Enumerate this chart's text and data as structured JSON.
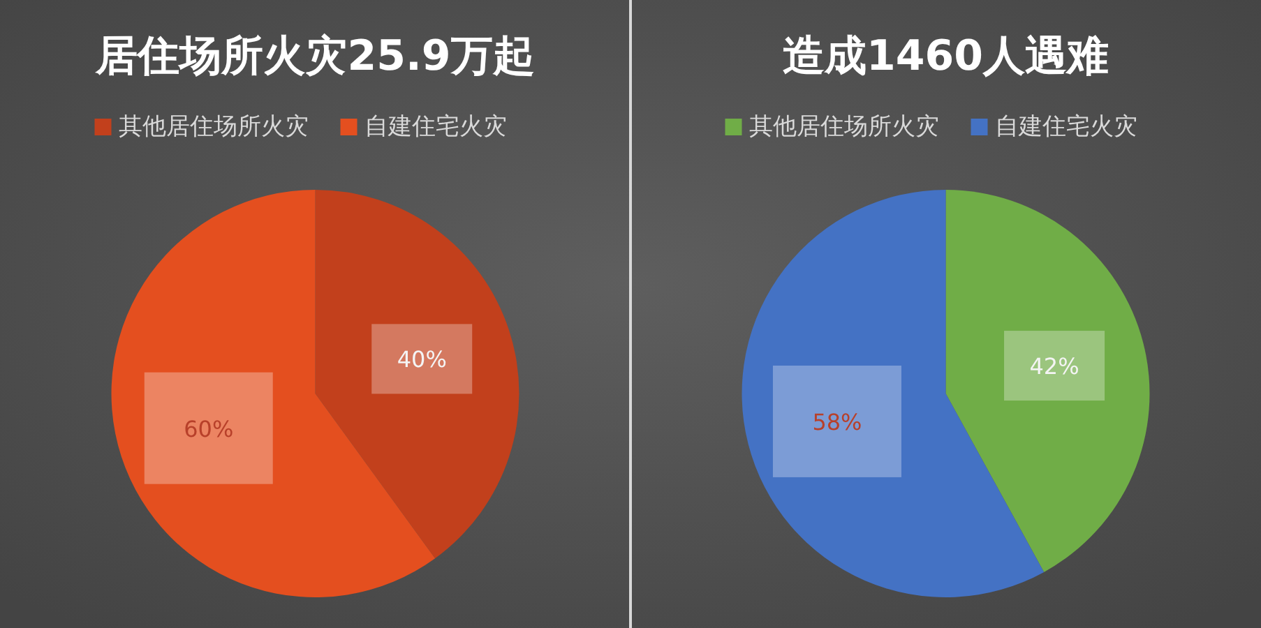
{
  "chart_data": [
    {
      "type": "pie",
      "title": "居住场所火灾25.9万起",
      "categories": [
        "其他居住场所火灾",
        "自建住宅火灾"
      ],
      "values": [
        40,
        60
      ],
      "colors": [
        "#c2401c",
        "#e44f1f"
      ],
      "value_labels": [
        "40%",
        "60%"
      ],
      "legend": "top"
    },
    {
      "type": "pie",
      "title": "造成1460人遇难",
      "categories": [
        "其他居住场所火灾",
        "自建住宅火灾"
      ],
      "values": [
        42,
        58
      ],
      "colors": [
        "#70ad47",
        "#4472c4"
      ],
      "value_labels": [
        "42%",
        "58%"
      ],
      "legend": "top"
    }
  ]
}
